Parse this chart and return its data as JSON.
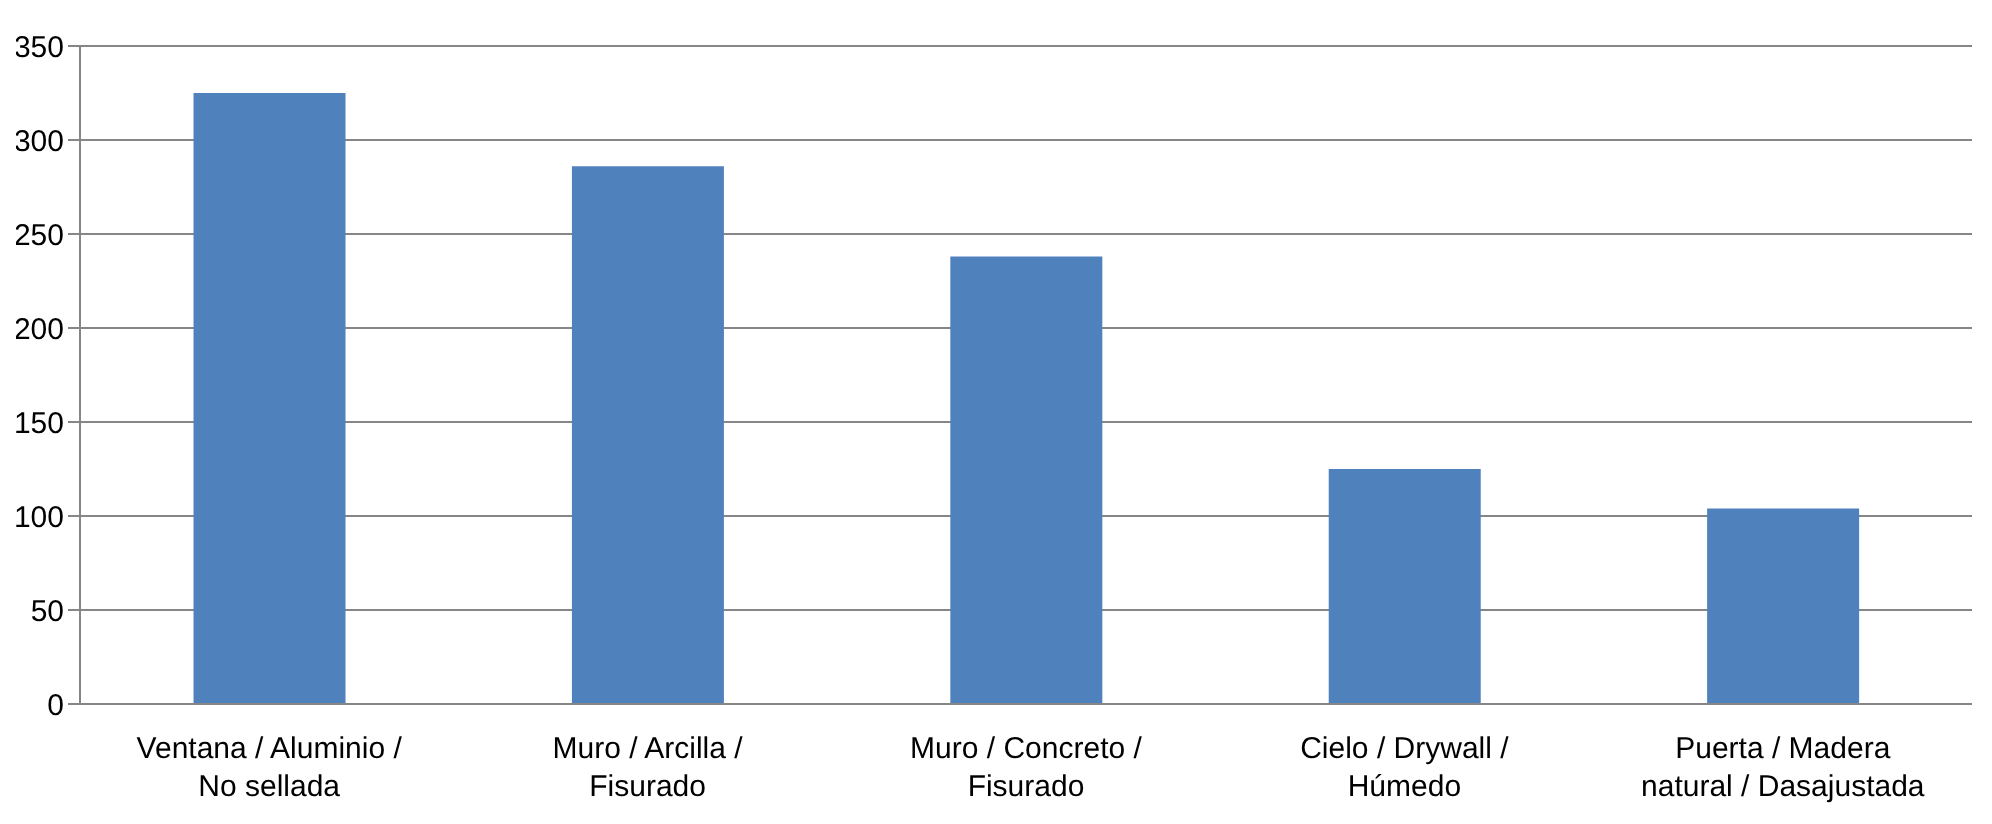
{
  "chart_data": {
    "type": "bar",
    "categories": [
      "Ventana / Aluminio / No sellada",
      "Muro / Arcilla / Fisurado",
      "Muro / Concreto / Fisurado",
      "Cielo / Drywall / Húmedo",
      "Puerta / Madera natural / Dasajustada"
    ],
    "values": [
      325,
      286,
      238,
      125,
      104
    ],
    "color": "#4f81bd",
    "ylim": [
      0,
      350
    ],
    "yticks": [
      0,
      50,
      100,
      150,
      200,
      250,
      300,
      350
    ],
    "grid": "y",
    "legend": false
  }
}
